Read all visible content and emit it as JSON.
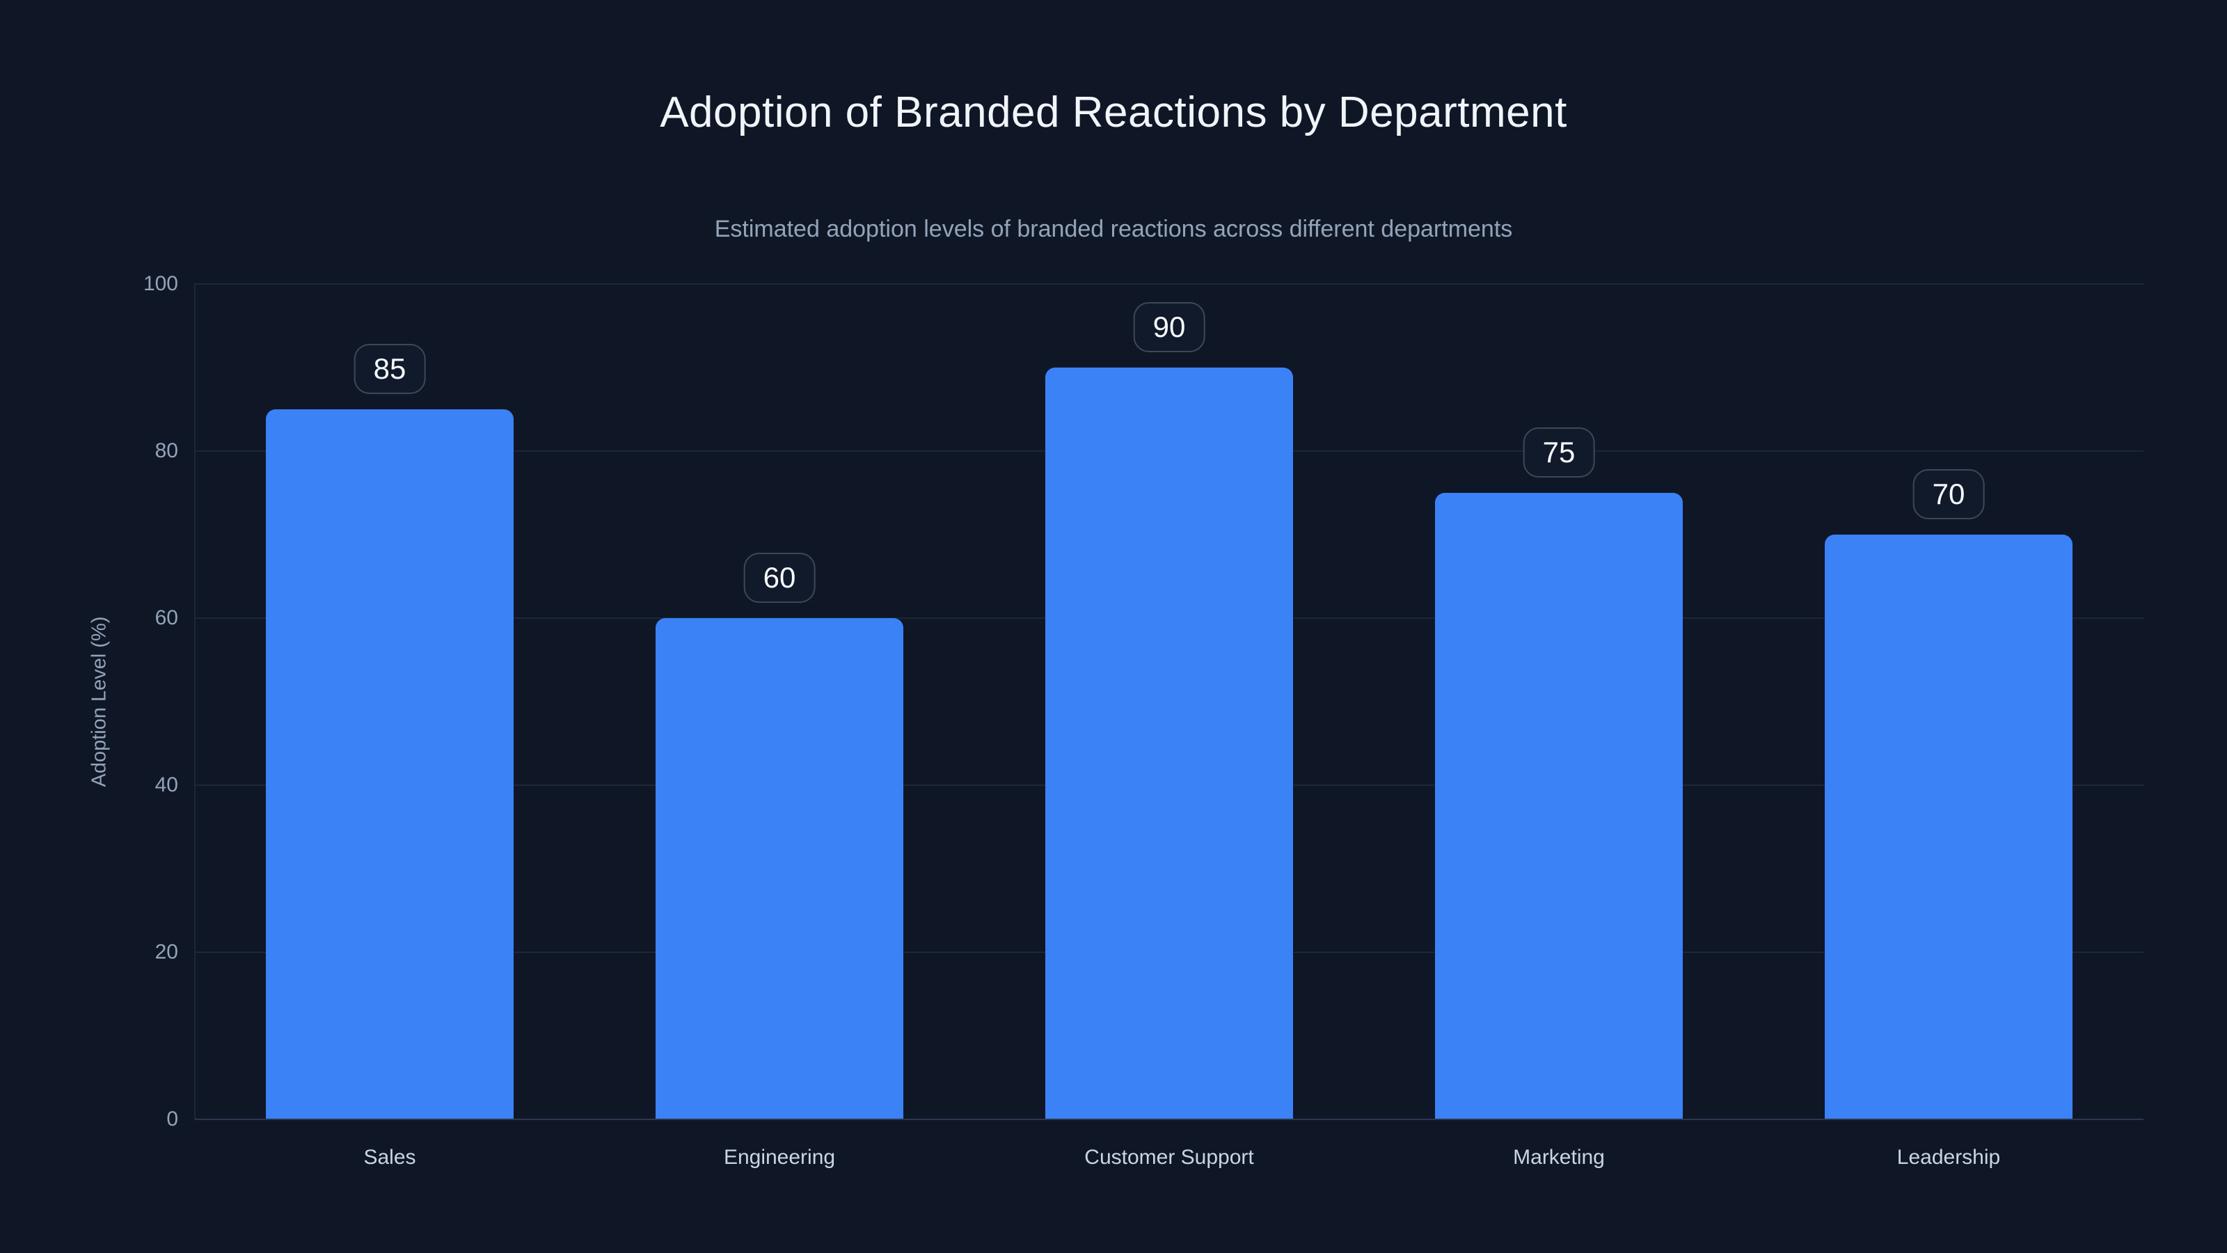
{
  "chart_data": {
    "type": "bar",
    "title": "Adoption of Branded Reactions by Department",
    "subtitle": "Estimated adoption levels of branded reactions across different departments",
    "categories": [
      "Sales",
      "Engineering",
      "Customer Support",
      "Marketing",
      "Leadership"
    ],
    "values": [
      85,
      60,
      90,
      75,
      70
    ],
    "value_labels": [
      "85",
      "60",
      "90",
      "75",
      "70"
    ],
    "xlabel": "",
    "ylabel": "Adoption Level (%)",
    "ylim": [
      0,
      100
    ],
    "yticks": [
      0,
      20,
      40,
      60,
      80,
      100
    ],
    "grid": true,
    "legend": false,
    "colors": {
      "background": "#0f1727",
      "bar": "#3b82f6",
      "grid": "#1d2737",
      "baseline": "#2b3850",
      "title": "#f1f5f9",
      "subtitle": "#94a3b8",
      "tick": "#94a3b8",
      "x_label": "#cbd5e1",
      "y_axis_title": "#94a3b8",
      "badge_bg": "#111a2b",
      "badge_border": "#3e4757",
      "badge_text": "#f8fafc"
    }
  }
}
